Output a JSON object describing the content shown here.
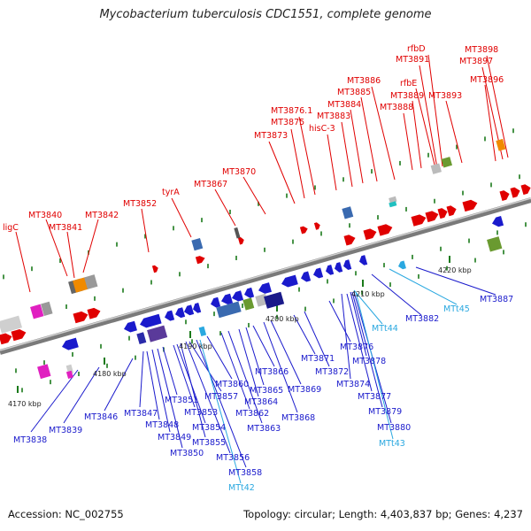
{
  "title": "Mycobacterium tuberculosis CDC1551, complete genome",
  "footer": {
    "accession": "Accession: NC_002755",
    "topology": "Topology: circular; Length: 4,403,837 bp; Genes: 4,237"
  },
  "scale_labels": [
    "4170 kbp",
    "4180 kbp",
    "4190 kbp",
    "4200 kbp",
    "4210 kbp",
    "4220 kbp"
  ],
  "upper_labels": [
    "ligC",
    "MT3840",
    "MT3841",
    "MT3842",
    "MT3852",
    "tyrA",
    "MT3867",
    "MT3870",
    "MT3873",
    "MT3875",
    "MT3876.1",
    "hisC-3",
    "MT3883",
    "MT3884",
    "MT3885",
    "MT3886",
    "MT3888",
    "MT3889",
    "rfbE",
    "MT3891",
    "rfbD",
    "MT3893",
    "MT3896",
    "MT3897",
    "MT3898"
  ],
  "lower_labels": [
    "MT3838",
    "MT3839",
    "MT3846",
    "MT3847",
    "MT3848",
    "MT3849",
    "MT3850",
    "MT3851",
    "MT3853",
    "MT3854",
    "MT3855",
    "MT3856",
    "MT3857",
    "MT3858",
    "MTt42",
    "MT3860",
    "MT3862",
    "MT3863",
    "MT3864",
    "MT3865",
    "MT3866",
    "MT3868",
    "MT3869",
    "MT3871",
    "MT3872",
    "MT3874",
    "MT3876",
    "MT3877",
    "MT3878",
    "MT3879",
    "MT3880",
    "MTt43",
    "MTt44",
    "MT3882",
    "MTt45",
    "MT3887"
  ],
  "colors": {
    "forward_gene": "#e00000",
    "reverse_gene": "#1a1acc",
    "trna": "#2aa8e0",
    "backbone": "#888888"
  }
}
